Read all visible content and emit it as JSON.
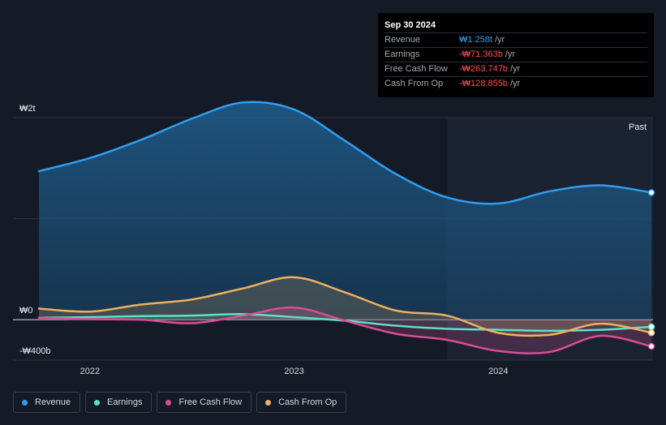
{
  "tooltip": {
    "date": "Sep 30 2024",
    "rows": [
      {
        "label": "Revenue",
        "value": "₩1.258t",
        "suffix": "/yr",
        "color": "#2f9ef0"
      },
      {
        "label": "Earnings",
        "value": "-₩71.363b",
        "suffix": "/yr",
        "color": "#ff4d4f"
      },
      {
        "label": "Free Cash Flow",
        "value": "-₩263.747b",
        "suffix": "/yr",
        "color": "#ff4d4f"
      },
      {
        "label": "Cash From Op",
        "value": "-₩128.855b",
        "suffix": "/yr",
        "color": "#ff4d4f"
      }
    ]
  },
  "past_label": "Past",
  "legend": [
    {
      "label": "Revenue",
      "color": "#2f9ef0"
    },
    {
      "label": "Earnings",
      "color": "#5de0c8"
    },
    {
      "label": "Free Cash Flow",
      "color": "#d94d96"
    },
    {
      "label": "Cash From Op",
      "color": "#eeb05f"
    }
  ],
  "chart_data": {
    "type": "area",
    "title": "",
    "xlabel": "",
    "ylabel": "",
    "x_ticks": [
      "2022",
      "2023",
      "2024"
    ],
    "y_ticks": [
      {
        "label": "₩2t",
        "value": 2000
      },
      {
        "label": "₩0",
        "value": 0
      },
      {
        "label": "-₩400b",
        "value": -400
      }
    ],
    "ylim": [
      -400,
      2000
    ],
    "xlim": [
      2021.75,
      2024.75
    ],
    "past_start": 2023.75,
    "units": "₩ billions",
    "series": [
      {
        "name": "Revenue",
        "color": "#2f9ef0",
        "x": [
          2021.75,
          2022.0,
          2022.25,
          2022.5,
          2022.75,
          2023.0,
          2023.25,
          2023.5,
          2023.75,
          2024.0,
          2024.25,
          2024.5,
          2024.75
        ],
        "values": [
          1470,
          1600,
          1780,
          1990,
          2150,
          2080,
          1770,
          1440,
          1210,
          1150,
          1270,
          1330,
          1258
        ]
      },
      {
        "name": "Earnings",
        "color": "#5de0c8",
        "x": [
          2021.75,
          2022.0,
          2022.25,
          2022.5,
          2022.75,
          2023.0,
          2023.25,
          2023.5,
          2023.75,
          2024.0,
          2024.25,
          2024.5,
          2024.75
        ],
        "values": [
          20,
          25,
          35,
          40,
          55,
          25,
          -10,
          -60,
          -90,
          -100,
          -110,
          -100,
          -71.363
        ]
      },
      {
        "name": "Free Cash Flow",
        "color": "#d94d96",
        "x": [
          2021.75,
          2022.0,
          2022.25,
          2022.5,
          2022.75,
          2023.0,
          2023.25,
          2023.5,
          2023.75,
          2024.0,
          2024.25,
          2024.5,
          2024.75
        ],
        "values": [
          20,
          5,
          0,
          -35,
          40,
          120,
          -10,
          -140,
          -200,
          -310,
          -320,
          -160,
          -263.747
        ]
      },
      {
        "name": "Cash From Op",
        "color": "#eeb05f",
        "x": [
          2021.75,
          2022.0,
          2022.25,
          2022.5,
          2022.75,
          2023.0,
          2023.25,
          2023.5,
          2023.75,
          2024.0,
          2024.25,
          2024.5,
          2024.75
        ],
        "values": [
          110,
          80,
          150,
          200,
          310,
          420,
          270,
          90,
          40,
          -130,
          -150,
          -40,
          -128.855
        ]
      }
    ]
  }
}
